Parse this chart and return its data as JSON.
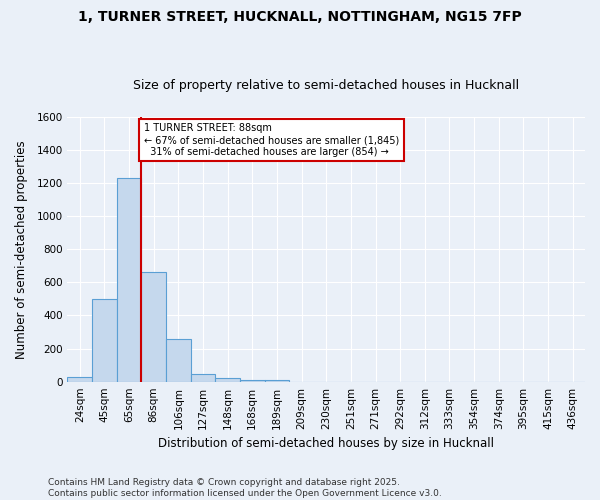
{
  "title": "1, TURNER STREET, HUCKNALL, NOTTINGHAM, NG15 7FP",
  "subtitle": "Size of property relative to semi-detached houses in Hucknall",
  "xlabel": "Distribution of semi-detached houses by size in Hucknall",
  "ylabel": "Number of semi-detached properties",
  "categories": [
    "24sqm",
    "45sqm",
    "65sqm",
    "86sqm",
    "106sqm",
    "127sqm",
    "148sqm",
    "168sqm",
    "189sqm",
    "209sqm",
    "230sqm",
    "251sqm",
    "271sqm",
    "292sqm",
    "312sqm",
    "333sqm",
    "354sqm",
    "374sqm",
    "395sqm",
    "415sqm",
    "436sqm"
  ],
  "values": [
    30,
    500,
    1230,
    660,
    255,
    45,
    20,
    13,
    10,
    0,
    0,
    0,
    0,
    0,
    0,
    0,
    0,
    0,
    0,
    0,
    0
  ],
  "bar_color": "#c5d8ed",
  "bar_edge_color": "#5a9fd4",
  "marker_line_color": "#cc0000",
  "marker_smaller_pct": "67%",
  "marker_smaller_n": "1,845",
  "marker_larger_pct": "31%",
  "marker_larger_n": "854",
  "annotation_box_color": "#ffffff",
  "annotation_box_edge": "#cc0000",
  "ylim": [
    0,
    1600
  ],
  "yticks": [
    0,
    200,
    400,
    600,
    800,
    1000,
    1200,
    1400,
    1600
  ],
  "background_color": "#eaf0f8",
  "grid_color": "#ffffff",
  "footnote": "Contains HM Land Registry data © Crown copyright and database right 2025.\nContains public sector information licensed under the Open Government Licence v3.0.",
  "title_fontsize": 10,
  "subtitle_fontsize": 9,
  "axis_label_fontsize": 8.5,
  "tick_fontsize": 7.5,
  "footnote_fontsize": 6.5
}
